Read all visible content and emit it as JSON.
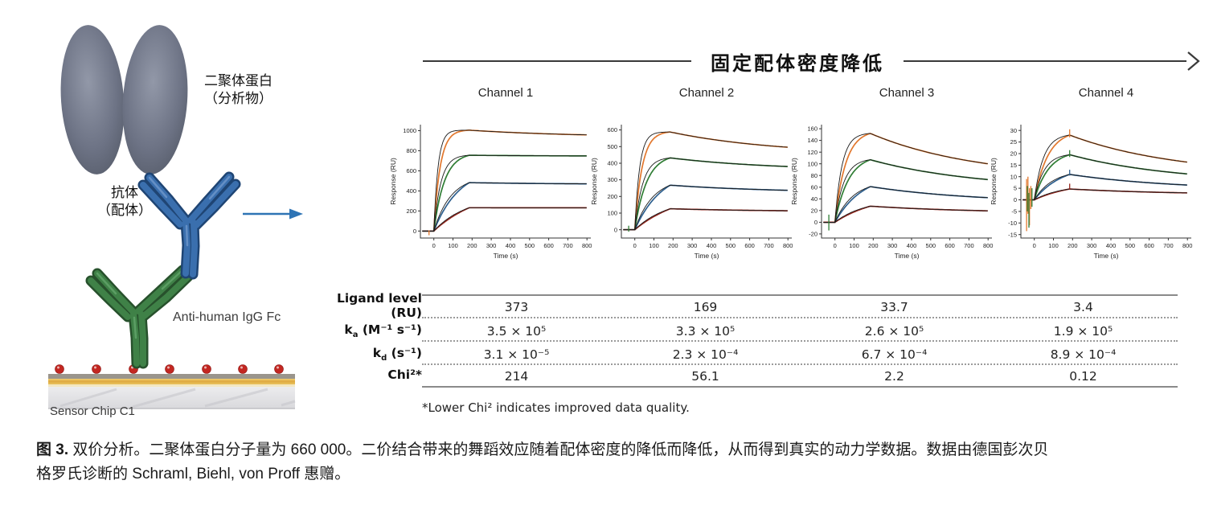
{
  "header": {
    "arrow_label": "固定配体密度降低"
  },
  "diagram": {
    "analyte_label_line1": "二聚体蛋白",
    "analyte_label_line2": "（分析物）",
    "ligand_label_line1": "抗体",
    "ligand_label_line2": "（配体）",
    "capture_label": "Anti-human IgG Fc",
    "chip_label": "Sensor Chip C1",
    "colors": {
      "dimer": "#666c7e",
      "antibody_ligand": "#3a6fae",
      "capture_antibody": "#3f8147",
      "dot_red": "#c32721",
      "gold": "#e3b04b",
      "arrow_blue": "#2e74b5"
    }
  },
  "chart_data": {
    "type": "line",
    "shared": {
      "xlabel": "Time (s)",
      "ylabel": "Response (RU)",
      "xlim": [
        -70,
        820
      ],
      "x_ticks": [
        0,
        100,
        200,
        300,
        400,
        500,
        600,
        700,
        800
      ],
      "baseline_start": -60,
      "assoc_end": 185,
      "x_end": 800
    },
    "palette": {
      "orange": "#e2782e",
      "green": "#2f7d34",
      "blue": "#2d5f8e",
      "dark_red": "#96281f",
      "fit": "#1a1a1a"
    },
    "channels": [
      {
        "title": "Channel 1",
        "ylim": [
          -70,
          1060
        ],
        "y_ticks": [
          0,
          200,
          400,
          600,
          800,
          1000
        ],
        "series": [
          {
            "color": "orange",
            "peak": 1005,
            "end": 958,
            "rate": 0.03
          },
          {
            "color": "green",
            "peak": 755,
            "end": 748,
            "rate": 0.018
          },
          {
            "color": "blue",
            "peak": 482,
            "end": 470,
            "rate": 0.0075
          },
          {
            "color": "dark_red",
            "peak": 232,
            "end": 231,
            "rate": 0.004
          }
        ],
        "spikes": [
          {
            "t": -25,
            "y1": -42,
            "y2": 6,
            "color": "orange"
          }
        ]
      },
      {
        "title": "Channel 2",
        "ylim": [
          -50,
          632
        ],
        "y_ticks": [
          0,
          100,
          200,
          300,
          400,
          500,
          600
        ],
        "series": [
          {
            "color": "orange",
            "peak": 588,
            "end": 496,
            "rate": 0.026
          },
          {
            "color": "green",
            "peak": 432,
            "end": 380,
            "rate": 0.016
          },
          {
            "color": "blue",
            "peak": 268,
            "end": 237,
            "rate": 0.007
          },
          {
            "color": "dark_red",
            "peak": 126,
            "end": 114,
            "rate": 0.004
          }
        ],
        "spikes": [
          {
            "t": -32,
            "y1": -12,
            "y2": 24,
            "color": "green"
          }
        ]
      },
      {
        "title": "Channel 3",
        "ylim": [
          -27,
          167
        ],
        "y_ticks": [
          -20,
          0,
          20,
          40,
          60,
          80,
          100,
          120,
          140,
          160
        ],
        "series": [
          {
            "color": "orange",
            "peak": 152,
            "end": 100,
            "rate": 0.018
          },
          {
            "color": "green",
            "peak": 107,
            "end": 73,
            "rate": 0.014
          },
          {
            "color": "blue",
            "peak": 61,
            "end": 42,
            "rate": 0.007
          },
          {
            "color": "dark_red",
            "peak": 27.5,
            "end": 19.5,
            "rate": 0.0045
          }
        ],
        "spikes": [
          {
            "t": -32,
            "y1": -14,
            "y2": 13,
            "color": "green"
          }
        ]
      },
      {
        "title": "Channel 4",
        "ylim": [
          -16.5,
          32.5
        ],
        "y_ticks": [
          -15,
          -10,
          -5,
          0,
          5,
          10,
          15,
          20,
          25,
          30
        ],
        "series": [
          {
            "color": "orange",
            "peak": 28,
            "end": 16.3,
            "rate": 0.014
          },
          {
            "color": "green",
            "peak": 19.5,
            "end": 11.2,
            "rate": 0.013
          },
          {
            "color": "blue",
            "peak": 11,
            "end": 6.4,
            "rate": 0.007
          },
          {
            "color": "dark_red",
            "peak": 4.7,
            "end": 3.0,
            "rate": 0.005
          }
        ],
        "spikes": [
          {
            "t": -40,
            "y1": -13.5,
            "y2": 9,
            "color": "orange"
          },
          {
            "t": -33,
            "y1": -6,
            "y2": 10,
            "color": "orange"
          },
          {
            "t": -25,
            "y1": -11,
            "y2": 5,
            "color": "orange"
          },
          {
            "t": -18,
            "y1": -4,
            "y2": 6,
            "color": "orange"
          },
          {
            "t": -36,
            "y1": -5,
            "y2": 6,
            "color": "green"
          },
          {
            "t": -28,
            "y1": -12,
            "y2": 3,
            "color": "green"
          },
          {
            "t": -12,
            "y1": -3,
            "y2": 5,
            "color": "green"
          },
          {
            "t": 185,
            "y1": 27,
            "y2": 30.5,
            "color": "orange"
          },
          {
            "t": 185,
            "y1": 18.5,
            "y2": 21.5,
            "color": "green"
          },
          {
            "t": 185,
            "y1": 10.5,
            "y2": 13,
            "color": "blue"
          },
          {
            "t": 185,
            "y1": 4.5,
            "y2": 7,
            "color": "dark_red"
          }
        ]
      }
    ]
  },
  "table": {
    "rows": [
      {
        "label": {
          "pre": "Ligand level (RU)",
          "sub": "",
          "post": ""
        },
        "values": [
          "373",
          "169",
          "33.7",
          "3.4"
        ]
      },
      {
        "label": {
          "pre": "k",
          "sub": "a",
          "post": " (M⁻¹ s⁻¹)"
        },
        "values": [
          "3.5 × 10⁵",
          "3.3 × 10⁵",
          "2.6 × 10⁵",
          "1.9 × 10⁵"
        ]
      },
      {
        "label": {
          "pre": "k",
          "sub": "d",
          "post": " (s⁻¹)"
        },
        "values": [
          "3.1 × 10⁻⁵",
          "2.3 × 10⁻⁴",
          "6.7 × 10⁻⁴",
          "8.9 × 10⁻⁴"
        ]
      },
      {
        "label": {
          "pre": "Chi²*",
          "sub": "",
          "post": ""
        },
        "values": [
          "214",
          "56.1",
          "2.2",
          "0.12"
        ]
      }
    ],
    "footnote": "*Lower Chi² indicates improved data quality."
  },
  "caption": {
    "fig_label": "图 3.",
    "line1_rest": " 双价分析。二聚体蛋白分子量为 660 000。二价结合带来的舞蹈效应随着配体密度的降低而降低，从而得到真实的动力学数据。数据由德国彭次贝",
    "line2": "格罗氏诊断的 Schraml, Biehl, von Proff 惠赠。"
  }
}
